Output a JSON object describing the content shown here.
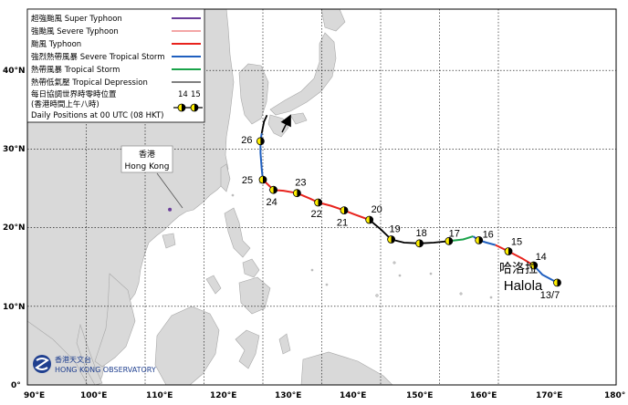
{
  "map": {
    "lon_labels": [
      "90°E",
      "100°E",
      "110°E",
      "120°E",
      "130°E",
      "140°E",
      "150°E",
      "160°E",
      "170°E",
      "180°"
    ],
    "lat_labels": [
      "0°",
      "10°N",
      "20°N",
      "30°N",
      "40°N"
    ],
    "colors": {
      "sea": "#ffffff",
      "land": "#d9d9d9",
      "coast": "#a8a8a8",
      "grid": "#000000",
      "super_typhoon": "#6a3d9a",
      "severe_typhoon": "#f4a6a6",
      "typhoon": "#e8231d",
      "severe_tropical_storm": "#1f5fbf",
      "tropical_storm": "#1aa34a",
      "tropical_depression": "#000000",
      "position_marker": "#ffef00"
    }
  },
  "legend": {
    "items": [
      {
        "label": "超強颱風  Super Typhoon",
        "color": "#6a3d9a"
      },
      {
        "label": "強颱風  Severe Typhoon",
        "color": "#f4a6a6"
      },
      {
        "label": "颱風  Typhoon",
        "color": "#e8231d"
      },
      {
        "label": "強烈熱帶風暴  Severe Tropical Storm",
        "color": "#1f5fbf"
      },
      {
        "label": "熱帶風暴  Tropical Storm",
        "color": "#1aa34a"
      },
      {
        "label": "熱帶低氣壓  Tropical Depression",
        "color": "#000000"
      }
    ],
    "daily_cn_1": "每日協調世界時零時位置",
    "daily_cn_2": "(香港時間上午八時)",
    "daily_en": "Daily Positions at 00 UTC (08 HKT)",
    "sample_labels": [
      "14",
      "15"
    ]
  },
  "hong_kong": {
    "label_cn": "香港",
    "label_en": "Hong Kong",
    "lon": 114.2,
    "lat": 22.3
  },
  "storm": {
    "name_cn": "哈洛拉",
    "name_en": "Halola"
  },
  "track": {
    "segments": [
      {
        "category": "severe_tropical_storm",
        "points": [
          [
            180.0,
            13.0
          ],
          [
            177.5,
            14.0
          ],
          [
            176.0,
            15.2
          ]
        ]
      },
      {
        "category": "typhoon",
        "points": [
          [
            176.0,
            15.2
          ],
          [
            174.0,
            16.1
          ],
          [
            171.7,
            17.0
          ],
          [
            169.5,
            17.8
          ]
        ]
      },
      {
        "category": "severe_tropical_storm",
        "points": [
          [
            169.5,
            17.8
          ],
          [
            168.0,
            18.1
          ],
          [
            166.7,
            18.4
          ],
          [
            165.7,
            18.9
          ]
        ]
      },
      {
        "category": "tropical_storm",
        "points": [
          [
            165.7,
            18.9
          ],
          [
            164.0,
            18.5
          ],
          [
            161.6,
            18.3
          ]
        ]
      },
      {
        "category": "tropical_depression",
        "points": [
          [
            161.6,
            18.3
          ],
          [
            159.0,
            18.1
          ],
          [
            156.6,
            18.0
          ],
          [
            154.0,
            18.1
          ],
          [
            151.8,
            18.5
          ],
          [
            150.0,
            19.8
          ],
          [
            148.1,
            21.0
          ]
        ]
      },
      {
        "category": "typhoon",
        "points": [
          [
            148.1,
            21.0
          ],
          [
            145.5,
            21.7
          ],
          [
            143.8,
            22.2
          ],
          [
            141.5,
            22.8
          ],
          [
            139.4,
            23.2
          ],
          [
            138.0,
            23.7
          ],
          [
            135.8,
            24.4
          ],
          [
            133.5,
            24.7
          ],
          [
            131.8,
            24.8
          ],
          [
            130.0,
            26.1
          ]
        ]
      },
      {
        "category": "severe_tropical_storm",
        "points": [
          [
            130.0,
            26.1
          ],
          [
            129.8,
            27.5
          ],
          [
            129.6,
            29.5
          ],
          [
            129.6,
            31.0
          ],
          [
            129.8,
            32.0
          ]
        ]
      },
      {
        "category": "tropical_depression",
        "points": [
          [
            129.8,
            32.0
          ],
          [
            130.2,
            33.5
          ],
          [
            130.7,
            34.3
          ]
        ]
      }
    ],
    "daily_positions": [
      {
        "label": "13/7",
        "lon": 180.0,
        "lat": 13.0
      },
      {
        "label": "14",
        "lon": 176.0,
        "lat": 15.2
      },
      {
        "label": "15",
        "lon": 171.7,
        "lat": 17.0
      },
      {
        "label": "16",
        "lon": 166.7,
        "lat": 18.4
      },
      {
        "label": "17",
        "lon": 161.6,
        "lat": 18.3
      },
      {
        "label": "18",
        "lon": 156.6,
        "lat": 18.0
      },
      {
        "label": "19",
        "lon": 151.8,
        "lat": 18.5
      },
      {
        "label": "20",
        "lon": 148.1,
        "lat": 21.0
      },
      {
        "label": "21",
        "lon": 143.8,
        "lat": 22.2
      },
      {
        "label": "22",
        "lon": 139.4,
        "lat": 23.2
      },
      {
        "label": "23",
        "lon": 135.8,
        "lat": 24.4
      },
      {
        "label": "24",
        "lon": 131.8,
        "lat": 24.8
      },
      {
        "label": "25",
        "lon": 130.0,
        "lat": 26.1
      },
      {
        "label": "26",
        "lon": 129.6,
        "lat": 31.0
      }
    ]
  },
  "footer": {
    "hko_cn": "香港天文台",
    "hko_en": "HONG KONG OBSERVATORY"
  }
}
